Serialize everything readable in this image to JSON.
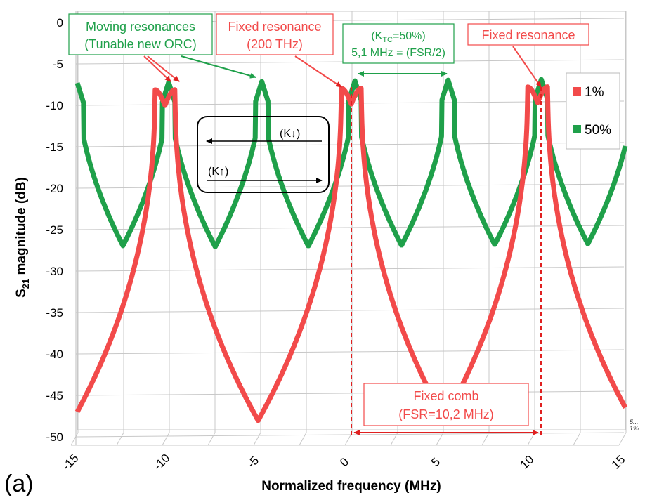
{
  "panel_label": "(a)",
  "chart_data": {
    "type": "line",
    "title": "",
    "xlabel": "Normalized frequency (MHz)",
    "ylabel": "S21 magnitude (dB)",
    "ylabel_main": "S",
    "ylabel_sub": "21",
    "ylabel_rest": " magnitude (dB)",
    "xlim": [
      -15,
      15
    ],
    "ylim": [
      -50,
      0
    ],
    "x_ticks": [
      "-15",
      "-10",
      "-5",
      "0",
      "5",
      "10",
      "15"
    ],
    "y_ticks": [
      "0",
      "-5",
      "-10",
      "-15",
      "-20",
      "-25",
      "-30",
      "-35",
      "-40",
      "-45",
      "-50"
    ],
    "depth_labels": [
      "5...",
      "1%"
    ],
    "grid": true,
    "legend_position": "right",
    "series": [
      {
        "name": "1%",
        "color": "#f24a4a",
        "fsr_mhz": 10.2,
        "resonances_mhz": [
          -10.2,
          0,
          10.2
        ],
        "split_offset_mhz": 0.55,
        "min_db": -8.2,
        "notch_db": -10.1,
        "max_db": -48.2
      },
      {
        "name": "50%",
        "color": "#1fa04a",
        "fsr_mhz": 5.1,
        "resonances_mhz": [
          -15,
          -10,
          -4.9,
          0.2,
          5.3,
          10.4,
          15.5
        ],
        "min_db": -7.3,
        "max_db": -27.2
      }
    ],
    "annotations": [
      {
        "key": "moving",
        "lines": [
          "Moving resonances",
          "(Tunable new ORC)"
        ],
        "color": "#1fa04a"
      },
      {
        "key": "fixed1",
        "lines": [
          "Fixed resonance",
          "(200 THz)"
        ],
        "color": "#f24a4a"
      },
      {
        "key": "ktc",
        "line1_pre": "(K",
        "line1_sub": "TC",
        "line1_post": "=50%)",
        "line2": "5,1 MHz = (FSR/2)",
        "color": "#1fa04a"
      },
      {
        "key": "fixed2",
        "lines": [
          "Fixed resonance"
        ],
        "color": "#f24a4a"
      },
      {
        "key": "comb",
        "lines": [
          "Fixed comb",
          "(FSR=10,2 MHz)"
        ],
        "color": "#f24a4a"
      },
      {
        "key": "kdown",
        "text": "(K↓)",
        "color": "#000000"
      },
      {
        "key": "kup",
        "text": "(K↑)",
        "color": "#000000"
      }
    ]
  }
}
